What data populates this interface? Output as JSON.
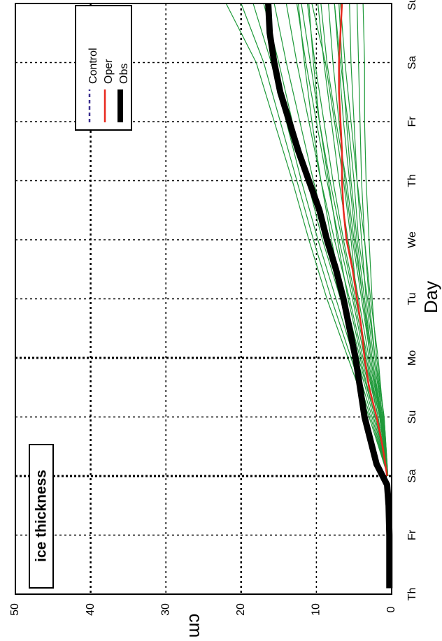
{
  "chart_data": {
    "type": "line",
    "orientation": "rotated-90-clockwise",
    "title": "ice thickness",
    "xlabel": "Day",
    "ylabel": "cm",
    "categories": [
      "Th",
      "Fr",
      "Sa",
      "Su",
      "Mo",
      "Tu",
      "We",
      "Th",
      "Fr",
      "Sa",
      "Su"
    ],
    "x_range": [
      0,
      10
    ],
    "ylim": [
      0,
      50
    ],
    "y_ticks": [
      "0",
      "10",
      "20",
      "30",
      "40",
      "50"
    ],
    "grid": true,
    "legend_position": "top-right",
    "legend": [
      {
        "label": "Control",
        "style": "dashed",
        "color": "#3b2f8f"
      },
      {
        "label": "Oper",
        "style": "solid",
        "color": "#e8281e"
      },
      {
        "label": "Obs",
        "style": "thick",
        "color": "#000000"
      }
    ],
    "colors": {
      "ensemble": "#1f9a3a",
      "oper": "#e8281e",
      "obs": "#000000",
      "control": "#3b2f8f"
    },
    "series": [
      {
        "name": "Obs",
        "x": [
          0.1,
          0.5,
          1.0,
          1.5,
          1.85,
          2.0,
          2.2,
          2.5,
          3.0,
          3.5,
          4.0,
          4.5,
          5.0,
          5.5,
          6.0,
          6.5,
          7.0,
          7.5,
          8.0,
          8.5,
          9.0,
          9.5,
          10.0
        ],
        "y": [
          0.3,
          0.3,
          0.3,
          0.4,
          0.6,
          1.2,
          2.0,
          2.6,
          3.6,
          4.2,
          4.8,
          5.6,
          6.4,
          7.4,
          8.6,
          9.6,
          11.0,
          12.4,
          13.6,
          14.8,
          15.6,
          16.2,
          16.4
        ]
      },
      {
        "name": "Oper",
        "x": [
          2.0,
          2.5,
          3.0,
          3.5,
          4.0,
          4.5,
          5.0,
          5.5,
          6.0,
          6.5,
          7.0,
          7.5,
          8.0,
          8.5,
          9.0,
          9.5,
          10.0
        ],
        "y": [
          0.6,
          1.2,
          2.0,
          3.0,
          3.6,
          4.0,
          4.6,
          5.2,
          6.0,
          6.4,
          6.6,
          6.6,
          6.8,
          7.0,
          7.0,
          6.8,
          6.6
        ]
      }
    ],
    "ensemble_members": [
      {
        "x": [
          2,
          3,
          4,
          5,
          6,
          7,
          8,
          9,
          10
        ],
        "y": [
          0.5,
          3.0,
          5.8,
          8.6,
          11.0,
          13.2,
          15.6,
          18.0,
          22.0
        ]
      },
      {
        "x": [
          2,
          3,
          4,
          5,
          6,
          7,
          8,
          9,
          10
        ],
        "y": [
          0.5,
          2.8,
          5.4,
          8.0,
          10.4,
          12.6,
          14.8,
          17.0,
          20.0
        ]
      },
      {
        "x": [
          2,
          3,
          4,
          5,
          6,
          7,
          8,
          9,
          10
        ],
        "y": [
          0.5,
          2.6,
          5.0,
          7.4,
          9.8,
          12.0,
          14.0,
          16.0,
          18.4
        ]
      },
      {
        "x": [
          2,
          3,
          4,
          5,
          6,
          7,
          8,
          9,
          10
        ],
        "y": [
          0.5,
          2.4,
          4.6,
          6.8,
          9.2,
          11.2,
          13.2,
          15.0,
          17.0
        ]
      },
      {
        "x": [
          2,
          3,
          4,
          5,
          6,
          7,
          8,
          9,
          10
        ],
        "y": [
          0.5,
          2.2,
          4.2,
          6.2,
          8.4,
          10.4,
          12.2,
          14.0,
          15.6
        ]
      },
      {
        "x": [
          2,
          3,
          4,
          5,
          6,
          7,
          8,
          9,
          10
        ],
        "y": [
          0.5,
          2.0,
          3.8,
          5.6,
          7.6,
          9.4,
          11.0,
          12.6,
          14.0
        ]
      },
      {
        "x": [
          2,
          3,
          4,
          5,
          6,
          7,
          8,
          9,
          10
        ],
        "y": [
          0.5,
          1.8,
          3.6,
          5.2,
          7.0,
          8.6,
          10.0,
          11.4,
          12.6
        ]
      },
      {
        "x": [
          2,
          3,
          4,
          5,
          6,
          7,
          8,
          9,
          10
        ],
        "y": [
          0.5,
          1.6,
          3.2,
          4.8,
          6.4,
          7.8,
          9.0,
          10.2,
          11.2
        ]
      },
      {
        "x": [
          2,
          3,
          4,
          5,
          6,
          7,
          8,
          9,
          10
        ],
        "y": [
          0.5,
          1.5,
          3.0,
          4.4,
          5.8,
          7.0,
          8.0,
          9.0,
          9.8
        ]
      },
      {
        "x": [
          2,
          3,
          4,
          5,
          6,
          7,
          8,
          9,
          10
        ],
        "y": [
          0.5,
          1.4,
          2.8,
          4.0,
          5.2,
          6.2,
          7.0,
          7.8,
          8.4
        ]
      },
      {
        "x": [
          2,
          3,
          4,
          5,
          6,
          7,
          8,
          9,
          10
        ],
        "y": [
          0.5,
          1.3,
          2.6,
          3.6,
          4.6,
          5.4,
          6.0,
          6.6,
          7.0
        ]
      },
      {
        "x": [
          2,
          3,
          4,
          5,
          6,
          7,
          8,
          9,
          10
        ],
        "y": [
          0.5,
          1.2,
          2.4,
          3.4,
          4.0,
          4.6,
          5.0,
          5.4,
          5.6
        ]
      },
      {
        "x": [
          2,
          3,
          4,
          5,
          6,
          7,
          8,
          9,
          10
        ],
        "y": [
          0.5,
          1.0,
          2.2,
          3.0,
          3.6,
          4.0,
          4.2,
          4.4,
          4.6
        ]
      },
      {
        "x": [
          2,
          3,
          4,
          5,
          6,
          7,
          8,
          9,
          10
        ],
        "y": [
          0.5,
          1.0,
          2.0,
          2.6,
          3.0,
          3.4,
          3.6,
          3.6,
          3.8
        ]
      },
      {
        "x": [
          2,
          3,
          4,
          5,
          6,
          7,
          8,
          9,
          10
        ],
        "y": [
          0.5,
          1.6,
          3.4,
          5.0,
          6.6,
          8.2,
          9.6,
          10.8,
          12.0
        ]
      },
      {
        "x": [
          2,
          3,
          4,
          5,
          6,
          7,
          8,
          9,
          10
        ],
        "y": [
          0.5,
          1.4,
          2.6,
          3.8,
          5.0,
          6.0,
          7.4,
          8.6,
          9.4
        ]
      },
      {
        "x": [
          2,
          3,
          4,
          5,
          6,
          7,
          8,
          9,
          10
        ],
        "y": [
          0.5,
          1.8,
          3.4,
          4.6,
          5.4,
          6.4,
          7.6,
          8.8,
          10.6
        ]
      },
      {
        "x": [
          2,
          3,
          4,
          5,
          6,
          7,
          8,
          9,
          10
        ],
        "y": [
          0.5,
          1.2,
          2.2,
          3.2,
          4.4,
          5.0,
          5.8,
          6.8,
          7.6
        ]
      },
      {
        "x": [
          2,
          3,
          4,
          5,
          6,
          7,
          8,
          9,
          10
        ],
        "y": [
          0.5,
          2.0,
          4.0,
          5.8,
          7.2,
          8.4,
          9.6,
          10.4,
          11.0
        ]
      },
      {
        "x": [
          2,
          3,
          4,
          5,
          6,
          7,
          8,
          9,
          10
        ],
        "y": [
          0.5,
          1.1,
          1.8,
          2.8,
          3.6,
          4.6,
          5.4,
          6.2,
          6.8
        ]
      },
      {
        "x": [
          2,
          3,
          4,
          5,
          6,
          7,
          8,
          9,
          10
        ],
        "y": [
          0.5,
          2.2,
          4.4,
          6.4,
          8.0,
          9.4,
          10.6,
          11.6,
          12.4
        ]
      },
      {
        "x": [
          2,
          3,
          4,
          5,
          6,
          7,
          8,
          9,
          10
        ],
        "y": [
          0.5,
          1.5,
          2.8,
          3.8,
          4.8,
          5.6,
          6.4,
          7.0,
          7.6
        ]
      }
    ]
  }
}
